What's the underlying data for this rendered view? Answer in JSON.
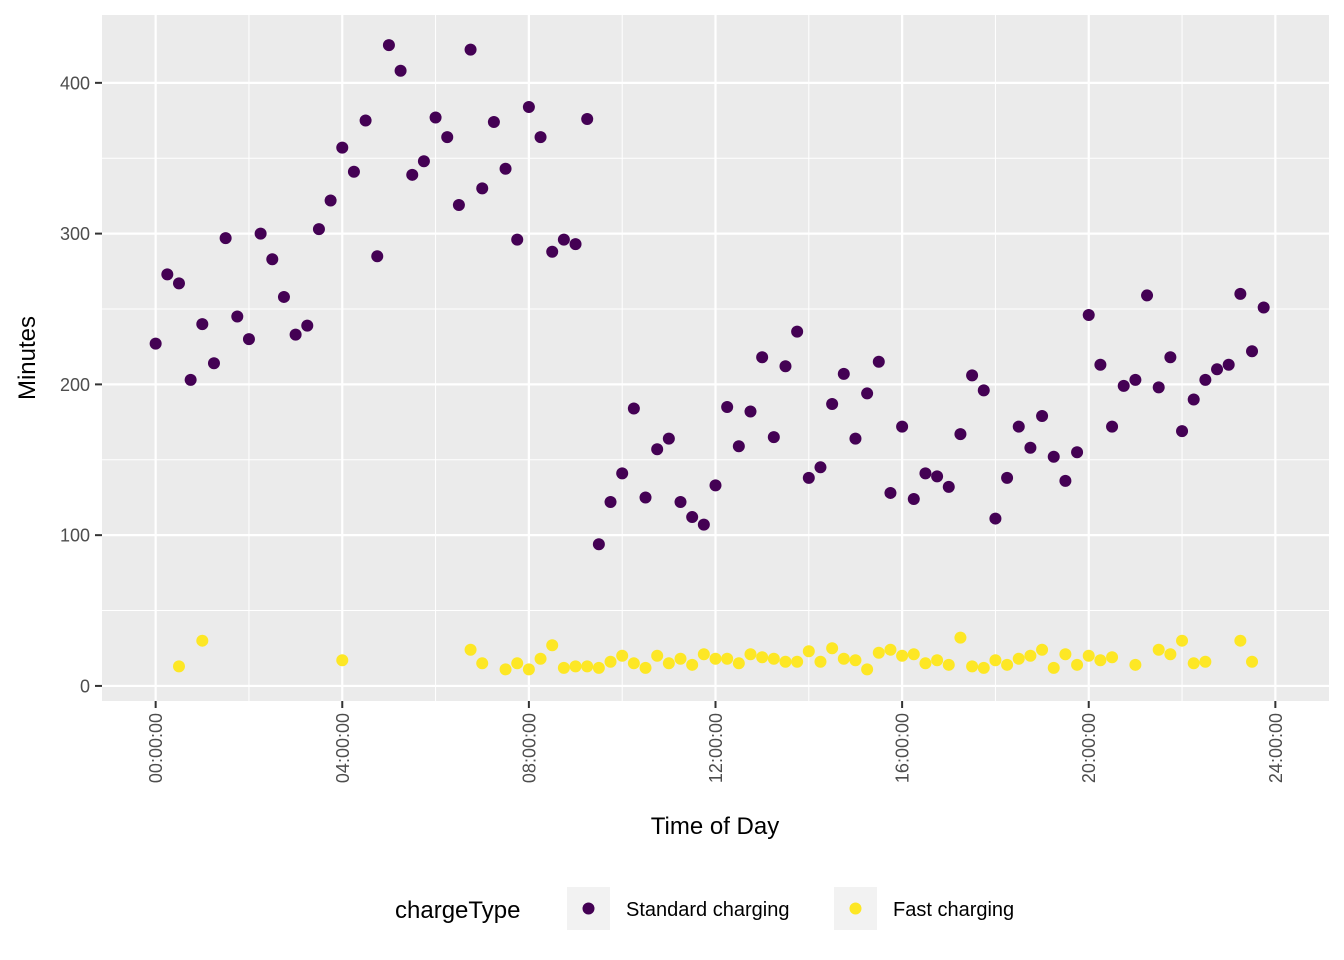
{
  "chart_data": {
    "type": "scatter",
    "xlabel": "Time of Day",
    "ylabel": "Minutes",
    "xlim": [
      -1.15,
      25.15
    ],
    "ylim": [
      -10,
      445
    ],
    "x_ticks": [
      {
        "value": 0,
        "label": "00:00:00"
      },
      {
        "value": 4,
        "label": "04:00:00"
      },
      {
        "value": 8,
        "label": "08:00:00"
      },
      {
        "value": 12,
        "label": "12:00:00"
      },
      {
        "value": 16,
        "label": "16:00:00"
      },
      {
        "value": 20,
        "label": "20:00:00"
      },
      {
        "value": 24,
        "label": "24:00:00"
      }
    ],
    "y_ticks": [
      0,
      100,
      200,
      300,
      400
    ],
    "grid": true,
    "legend": {
      "title": "chargeType",
      "position": "bottom"
    },
    "series": [
      {
        "name": "Standard charging",
        "color": "#440154",
        "points": [
          [
            0,
            227
          ],
          [
            0.25,
            273
          ],
          [
            0.5,
            267
          ],
          [
            0.75,
            203
          ],
          [
            1.0,
            240
          ],
          [
            1.25,
            214
          ],
          [
            1.5,
            297
          ],
          [
            1.75,
            245
          ],
          [
            2.0,
            230
          ],
          [
            2.25,
            300
          ],
          [
            2.5,
            283
          ],
          [
            2.75,
            258
          ],
          [
            3.0,
            233
          ],
          [
            3.25,
            239
          ],
          [
            3.5,
            303
          ],
          [
            3.75,
            322
          ],
          [
            4.0,
            357
          ],
          [
            4.25,
            341
          ],
          [
            4.5,
            375
          ],
          [
            4.75,
            285
          ],
          [
            5.0,
            425
          ],
          [
            5.25,
            408
          ],
          [
            5.5,
            339
          ],
          [
            5.75,
            348
          ],
          [
            6.0,
            377
          ],
          [
            6.25,
            364
          ],
          [
            6.5,
            319
          ],
          [
            6.75,
            422
          ],
          [
            7.0,
            330
          ],
          [
            7.25,
            374
          ],
          [
            7.5,
            343
          ],
          [
            7.75,
            296
          ],
          [
            8.0,
            384
          ],
          [
            8.25,
            364
          ],
          [
            8.5,
            288
          ],
          [
            8.75,
            296
          ],
          [
            9.0,
            293
          ],
          [
            9.25,
            376
          ],
          [
            9.5,
            94
          ],
          [
            9.75,
            122
          ],
          [
            10.0,
            141
          ],
          [
            10.25,
            184
          ],
          [
            10.5,
            125
          ],
          [
            10.75,
            157
          ],
          [
            11.0,
            164
          ],
          [
            11.25,
            122
          ],
          [
            11.5,
            112
          ],
          [
            11.75,
            107
          ],
          [
            12.0,
            133
          ],
          [
            12.25,
            185
          ],
          [
            12.5,
            159
          ],
          [
            12.75,
            182
          ],
          [
            13.0,
            218
          ],
          [
            13.25,
            165
          ],
          [
            13.5,
            212
          ],
          [
            13.75,
            235
          ],
          [
            14.0,
            138
          ],
          [
            14.25,
            145
          ],
          [
            14.5,
            187
          ],
          [
            14.75,
            207
          ],
          [
            15.0,
            164
          ],
          [
            15.25,
            194
          ],
          [
            15.5,
            215
          ],
          [
            15.75,
            128
          ],
          [
            16.0,
            172
          ],
          [
            16.25,
            124
          ],
          [
            16.5,
            141
          ],
          [
            16.75,
            139
          ],
          [
            17.0,
            132
          ],
          [
            17.25,
            167
          ],
          [
            17.5,
            206
          ],
          [
            17.75,
            196
          ],
          [
            18.0,
            111
          ],
          [
            18.25,
            138
          ],
          [
            18.5,
            172
          ],
          [
            18.75,
            158
          ],
          [
            19.0,
            179
          ],
          [
            19.25,
            152
          ],
          [
            19.5,
            136
          ],
          [
            19.75,
            155
          ],
          [
            20.0,
            246
          ],
          [
            20.25,
            213
          ],
          [
            20.5,
            172
          ],
          [
            20.75,
            199
          ],
          [
            21.0,
            203
          ],
          [
            21.25,
            259
          ],
          [
            21.5,
            198
          ],
          [
            21.75,
            218
          ],
          [
            22.0,
            169
          ],
          [
            22.25,
            190
          ],
          [
            22.5,
            203
          ],
          [
            22.75,
            210
          ],
          [
            23.0,
            213
          ],
          [
            23.25,
            260
          ],
          [
            23.5,
            222
          ],
          [
            23.75,
            251
          ]
        ]
      },
      {
        "name": "Fast charging",
        "color": "#FDE725",
        "points": [
          [
            0.5,
            13
          ],
          [
            1.0,
            30
          ],
          [
            4.0,
            17
          ],
          [
            6.75,
            24
          ],
          [
            7.0,
            15
          ],
          [
            7.5,
            11
          ],
          [
            7.75,
            15
          ],
          [
            8.0,
            11
          ],
          [
            8.25,
            18
          ],
          [
            8.5,
            27
          ],
          [
            8.75,
            12
          ],
          [
            9.0,
            13
          ],
          [
            9.25,
            13
          ],
          [
            9.5,
            12
          ],
          [
            9.75,
            16
          ],
          [
            10.0,
            20
          ],
          [
            10.25,
            15
          ],
          [
            10.5,
            12
          ],
          [
            10.75,
            20
          ],
          [
            11.0,
            15
          ],
          [
            11.25,
            18
          ],
          [
            11.5,
            14
          ],
          [
            11.75,
            21
          ],
          [
            12.0,
            18
          ],
          [
            12.25,
            18
          ],
          [
            12.5,
            15
          ],
          [
            12.75,
            21
          ],
          [
            13.0,
            19
          ],
          [
            13.25,
            18
          ],
          [
            13.5,
            16
          ],
          [
            13.75,
            16
          ],
          [
            14.0,
            23
          ],
          [
            14.25,
            16
          ],
          [
            14.5,
            25
          ],
          [
            14.75,
            18
          ],
          [
            15.0,
            17
          ],
          [
            15.25,
            11
          ],
          [
            15.5,
            22
          ],
          [
            15.75,
            24
          ],
          [
            16.0,
            20
          ],
          [
            16.25,
            21
          ],
          [
            16.5,
            15
          ],
          [
            16.75,
            17
          ],
          [
            17.0,
            14
          ],
          [
            17.25,
            32
          ],
          [
            17.5,
            13
          ],
          [
            17.75,
            12
          ],
          [
            18.0,
            17
          ],
          [
            18.25,
            14
          ],
          [
            18.5,
            18
          ],
          [
            18.75,
            20
          ],
          [
            19.0,
            24
          ],
          [
            19.25,
            12
          ],
          [
            19.5,
            21
          ],
          [
            19.75,
            14
          ],
          [
            20.0,
            20
          ],
          [
            20.25,
            17
          ],
          [
            20.5,
            19
          ],
          [
            21.0,
            14
          ],
          [
            21.5,
            24
          ],
          [
            21.75,
            21
          ],
          [
            22.0,
            30
          ],
          [
            22.25,
            15
          ],
          [
            22.5,
            16
          ],
          [
            23.25,
            30
          ],
          [
            23.5,
            16
          ]
        ]
      }
    ]
  }
}
